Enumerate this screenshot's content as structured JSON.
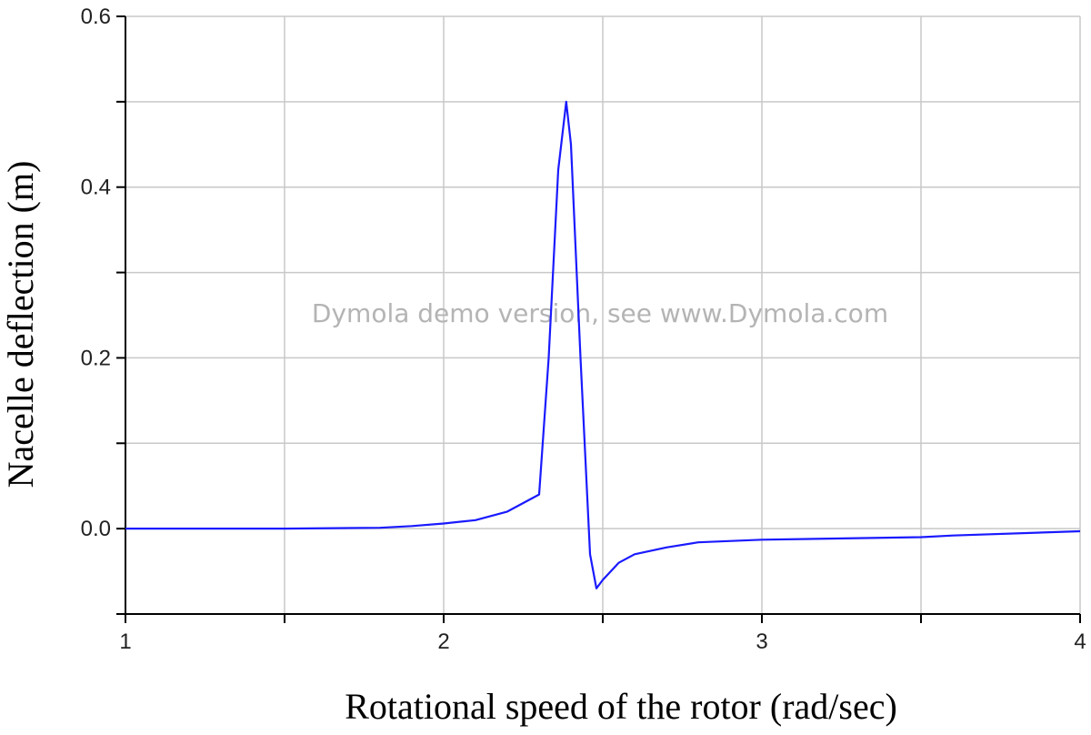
{
  "chart_data": {
    "type": "line",
    "title": "",
    "xlabel": "Rotational speed of the rotor (rad/sec)",
    "ylabel": "Nacelle deflection (m)",
    "watermark": "Dymola demo version, see www.Dymola.com",
    "xlim": [
      1,
      4
    ],
    "ylim": [
      -0.1,
      0.6
    ],
    "xticks": [
      1,
      1.5,
      2,
      2.5,
      3,
      3.5,
      4
    ],
    "xtick_labels": [
      "1",
      "",
      "2",
      "",
      "3",
      "",
      "4"
    ],
    "yticks": [
      -0.1,
      0.0,
      0.1,
      0.2,
      0.3,
      0.4,
      0.5,
      0.6
    ],
    "ytick_labels": [
      "",
      "0.0",
      "",
      "0.2",
      "",
      "0.4",
      "",
      "0.6"
    ],
    "grid": true,
    "series": [
      {
        "name": "",
        "color": "#1a1aff",
        "x": [
          1.0,
          1.5,
          1.8,
          1.9,
          2.0,
          2.1,
          2.2,
          2.25,
          2.3,
          2.33,
          2.36,
          2.385,
          2.4,
          2.43,
          2.46,
          2.48,
          2.5,
          2.55,
          2.6,
          2.7,
          2.8,
          3.0,
          3.5,
          3.6,
          4.0
        ],
        "y": [
          0.0,
          0.0,
          0.001,
          0.003,
          0.006,
          0.01,
          0.02,
          0.03,
          0.04,
          0.2,
          0.42,
          0.5,
          0.45,
          0.2,
          -0.03,
          -0.07,
          -0.06,
          -0.04,
          -0.03,
          -0.022,
          -0.016,
          -0.013,
          -0.01,
          -0.008,
          -0.003
        ]
      }
    ]
  }
}
